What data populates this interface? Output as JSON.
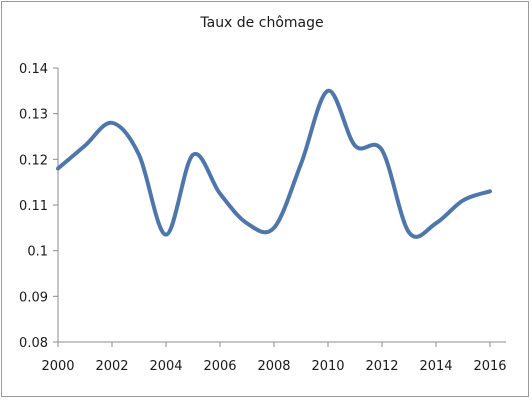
{
  "chart_data": {
    "type": "line",
    "title": "Taux de chômage",
    "x": [
      2000,
      2001,
      2002,
      2003,
      2004,
      2005,
      2006,
      2007,
      2008,
      2009,
      2010,
      2011,
      2012,
      2013,
      2014,
      2015,
      2016
    ],
    "series": [
      {
        "values": [
          0.118,
          0.123,
          0.128,
          0.121,
          0.1035,
          0.121,
          0.1125,
          0.106,
          0.105,
          0.119,
          0.135,
          0.123,
          0.122,
          0.104,
          0.106,
          0.111,
          0.113
        ]
      }
    ],
    "xticks": [
      "2000",
      "2002",
      "2004",
      "2006",
      "2008",
      "2010",
      "2012",
      "2014",
      "2016"
    ],
    "yticks": [
      "0.08",
      "0.09",
      "0.1",
      "0.11",
      "0.12",
      "0.13",
      "0.14"
    ],
    "xlim": [
      2000,
      2016
    ],
    "ylim": [
      0.08,
      0.14
    ],
    "grid": false,
    "legend": "none",
    "line_color": "#4f76aa"
  }
}
